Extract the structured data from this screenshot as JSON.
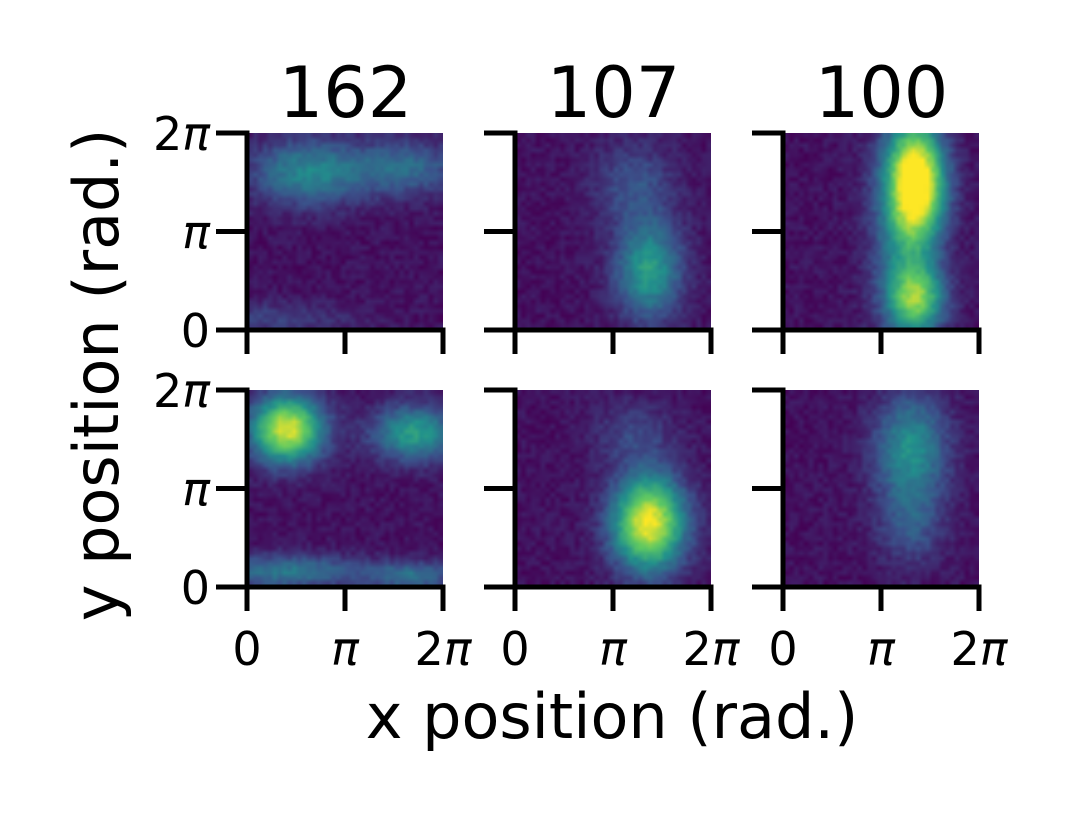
{
  "chart_data": {
    "type": "heatmap",
    "titles": [
      "162",
      "107",
      "100"
    ],
    "xlabel": "x position (rad.)",
    "ylabel": "y position (rad.)",
    "tick_values": [
      0,
      3.14159,
      6.28318
    ],
    "xticklabels": [
      [
        "0",
        ""
      ],
      [
        "",
        "π"
      ],
      [
        "2",
        "π"
      ]
    ],
    "yticklabels": [
      [
        "0",
        ""
      ],
      [
        "",
        "π"
      ],
      [
        "2",
        "π"
      ]
    ],
    "colormap": "viridis",
    "colormap_stops": [
      "#440154",
      "#3b528b",
      "#21918c",
      "#5ec962",
      "#fde725"
    ],
    "rows": 2,
    "cols": 3,
    "panels": [
      {
        "title": "162",
        "row": 0,
        "col": 0,
        "blobs": [
          {
            "x": 0.3,
            "y": 0.8,
            "sx": 0.2,
            "sy": 0.12,
            "a": 0.4
          },
          {
            "x": 0.8,
            "y": 0.82,
            "sx": 0.2,
            "sy": 0.1,
            "a": 0.3
          },
          {
            "x": 0.1,
            "y": 0.05,
            "sx": 0.3,
            "sy": 0.06,
            "a": 0.15
          }
        ]
      },
      {
        "title": "107",
        "row": 0,
        "col": 1,
        "blobs": [
          {
            "x": 0.68,
            "y": 0.3,
            "sx": 0.12,
            "sy": 0.18,
            "a": 0.5
          },
          {
            "x": 0.6,
            "y": 0.75,
            "sx": 0.15,
            "sy": 0.15,
            "a": 0.2
          }
        ]
      },
      {
        "title": "100",
        "row": 0,
        "col": 2,
        "blobs": [
          {
            "x": 0.68,
            "y": 0.75,
            "sx": 0.1,
            "sy": 0.2,
            "a": 0.95
          },
          {
            "x": 0.68,
            "y": 0.15,
            "sx": 0.1,
            "sy": 0.12,
            "a": 0.6
          },
          {
            "x": 0.62,
            "y": 0.5,
            "sx": 0.12,
            "sy": 0.4,
            "a": 0.35
          }
        ]
      },
      {
        "title": "",
        "row": 1,
        "col": 0,
        "blobs": [
          {
            "x": 0.2,
            "y": 0.8,
            "sx": 0.13,
            "sy": 0.12,
            "a": 0.9
          },
          {
            "x": 0.85,
            "y": 0.78,
            "sx": 0.15,
            "sy": 0.1,
            "a": 0.5
          },
          {
            "x": 0.2,
            "y": 0.07,
            "sx": 0.3,
            "sy": 0.06,
            "a": 0.35
          },
          {
            "x": 0.85,
            "y": 0.05,
            "sx": 0.15,
            "sy": 0.05,
            "a": 0.3
          }
        ]
      },
      {
        "title": "",
        "row": 1,
        "col": 1,
        "blobs": [
          {
            "x": 0.68,
            "y": 0.32,
            "sx": 0.13,
            "sy": 0.17,
            "a": 0.95
          },
          {
            "x": 0.6,
            "y": 0.78,
            "sx": 0.15,
            "sy": 0.12,
            "a": 0.15
          }
        ]
      },
      {
        "title": "",
        "row": 1,
        "col": 2,
        "blobs": [
          {
            "x": 0.65,
            "y": 0.7,
            "sx": 0.13,
            "sy": 0.2,
            "a": 0.45
          },
          {
            "x": 0.65,
            "y": 0.3,
            "sx": 0.12,
            "sy": 0.15,
            "a": 0.2
          }
        ]
      }
    ]
  }
}
